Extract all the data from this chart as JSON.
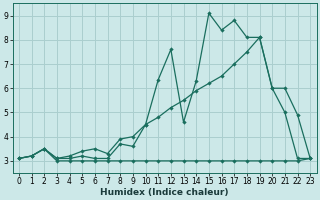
{
  "xlabel": "Humidex (Indice chaleur)",
  "bg_color": "#cce8e8",
  "grid_color": "#aacece",
  "line_color": "#1a6e5e",
  "xlim": [
    -0.5,
    23.5
  ],
  "ylim": [
    2.5,
    9.5
  ],
  "xticks": [
    0,
    1,
    2,
    3,
    4,
    5,
    6,
    7,
    8,
    9,
    10,
    11,
    12,
    13,
    14,
    15,
    16,
    17,
    18,
    19,
    20,
    21,
    22,
    23
  ],
  "yticks": [
    3,
    4,
    5,
    6,
    7,
    8,
    9
  ],
  "line1_x": [
    0,
    1,
    2,
    3,
    4,
    5,
    6,
    7,
    8,
    9,
    10,
    11,
    12,
    13,
    14,
    15,
    16,
    17,
    18,
    19,
    20,
    21,
    22,
    23
  ],
  "line1_y": [
    3.1,
    3.2,
    3.5,
    3.0,
    3.0,
    3.0,
    3.0,
    3.0,
    3.0,
    3.0,
    3.0,
    3.0,
    3.0,
    3.0,
    3.0,
    3.0,
    3.0,
    3.0,
    3.0,
    3.0,
    3.0,
    3.0,
    3.0,
    3.1
  ],
  "line2_x": [
    0,
    1,
    2,
    3,
    4,
    5,
    6,
    7,
    8,
    9,
    10,
    11,
    12,
    13,
    14,
    15,
    16,
    17,
    18,
    19,
    20,
    21,
    22,
    23
  ],
  "line2_y": [
    3.1,
    3.2,
    3.5,
    3.1,
    3.1,
    3.2,
    3.1,
    3.1,
    3.7,
    3.6,
    4.5,
    6.35,
    7.6,
    4.6,
    6.3,
    9.1,
    8.4,
    8.8,
    8.1,
    8.1,
    6.0,
    6.0,
    4.9,
    3.1
  ],
  "line3_x": [
    0,
    1,
    2,
    3,
    4,
    5,
    6,
    7,
    8,
    9,
    10,
    11,
    12,
    13,
    14,
    15,
    16,
    17,
    18,
    19,
    20,
    21,
    22,
    23
  ],
  "line3_y": [
    3.1,
    3.2,
    3.5,
    3.1,
    3.2,
    3.4,
    3.5,
    3.3,
    3.9,
    4.0,
    4.5,
    4.8,
    5.2,
    5.5,
    5.9,
    6.2,
    6.5,
    7.0,
    7.5,
    8.1,
    6.0,
    5.0,
    3.1,
    3.1
  ]
}
